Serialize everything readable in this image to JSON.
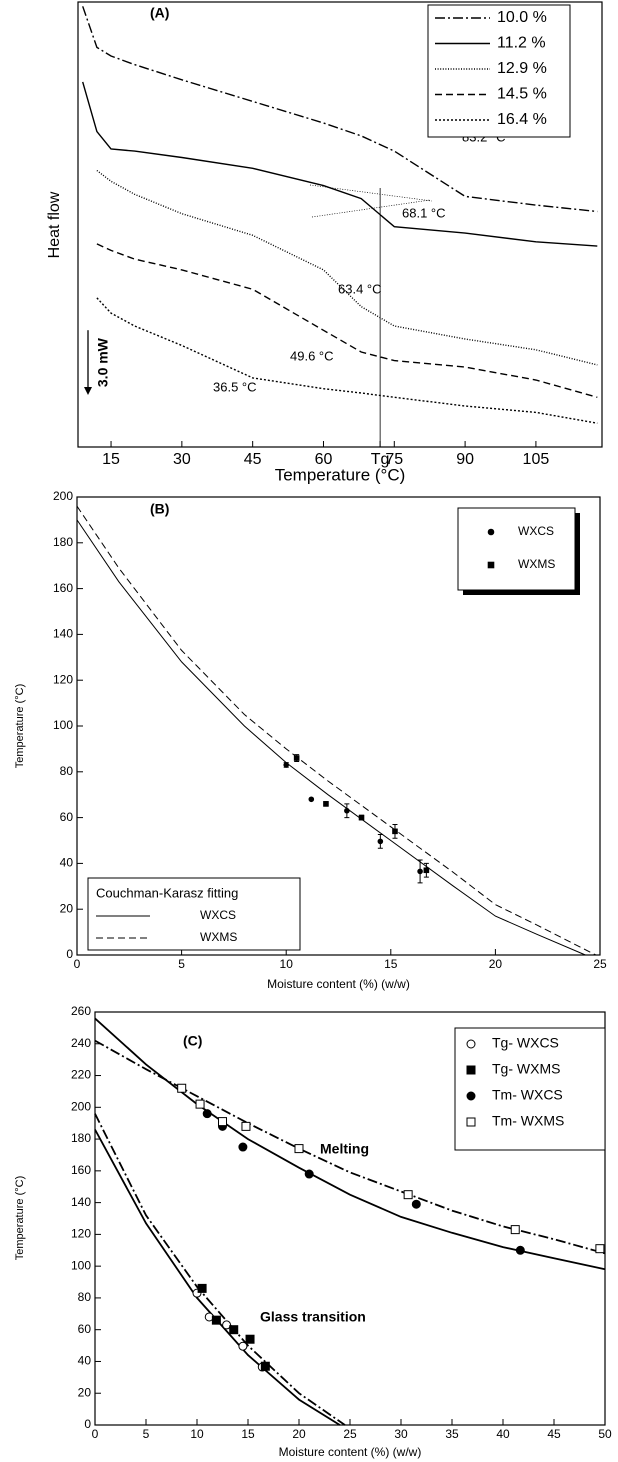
{
  "chart_data": [
    {
      "type": "line",
      "title": "(A)",
      "xlabel": "Temperature (°C)",
      "ylabel": "Heat flow",
      "scale_bar": {
        "value": 3,
        "label": "3.0 mW"
      },
      "x": [
        9,
        12,
        15,
        20,
        30,
        45,
        60,
        68,
        75,
        90,
        105,
        118
      ],
      "series": [
        {
          "name": "10.0 %",
          "color": "#000000",
          "dash": "dashdot",
          "values": [
            20.4,
            18.5,
            18.1,
            17.7,
            17.0,
            16.0,
            15.0,
            14.4,
            13.7,
            11.6,
            11.2,
            10.9
          ]
        },
        {
          "name": "11.2 %",
          "color": "#000000",
          "dash": "solid",
          "values": [
            16.9,
            14.6,
            13.8,
            13.7,
            13.4,
            12.9,
            12.1,
            11.5,
            10.2,
            9.9,
            9.5,
            9.3
          ]
        },
        {
          "name": "12.9 %",
          "color": "#000000",
          "dash": "fine-dot",
          "values": [
            null,
            12.8,
            12.3,
            11.7,
            10.8,
            9.8,
            8.2,
            6.5,
            5.6,
            5.0,
            4.5,
            3.8
          ]
        },
        {
          "name": "14.5 %",
          "color": "#000000",
          "dash": "dashed",
          "values": [
            null,
            9.4,
            9.1,
            8.7,
            8.2,
            7.3,
            5.4,
            4.4,
            4.0,
            3.7,
            3.1,
            2.3
          ]
        },
        {
          "name": "16.4 %",
          "color": "#000000",
          "dash": "dotted",
          "values": [
            null,
            6.9,
            6.2,
            5.6,
            4.7,
            3.2,
            2.7,
            2.5,
            2.3,
            1.9,
            1.6,
            1.1
          ]
        }
      ],
      "xlim": [
        8,
        119
      ],
      "ylim": [
        0,
        20.6
      ],
      "xticks": [
        15,
        30,
        45,
        60,
        {
          "value": 72,
          "label": "Tg"
        },
        75,
        90,
        105
      ],
      "annotations": [
        "83.2 °C",
        "68.1 °C",
        "63.4 °C",
        "49.6 °C",
        "36.5 °C"
      ],
      "legend": "upper right"
    },
    {
      "type": "scatter",
      "title": "(B)",
      "xlabel": "Moisture content (%) (w/w)",
      "ylabel": "Temperature (°C)",
      "legend_title": "Couchman-Karasz fitting",
      "series": [
        {
          "name": "WXCS",
          "kind": "scatter",
          "marker": "circle",
          "filled": true,
          "color": "#000000",
          "x": [
            10,
            11.2,
            12.9,
            14.5,
            16.4
          ],
          "values": [
            83,
            68,
            63,
            49.6,
            36.5
          ],
          "errors": [
            1,
            0,
            3,
            3,
            5
          ]
        },
        {
          "name": "WXMS",
          "kind": "scatter",
          "marker": "square",
          "filled": true,
          "color": "#000000",
          "x": [
            10.5,
            11.9,
            13.6,
            15.2,
            16.7
          ],
          "values": [
            86,
            66,
            60,
            54,
            37
          ],
          "errors": [
            1.5,
            1,
            1,
            3,
            3
          ]
        },
        {
          "name": "WXCS",
          "kind": "line",
          "dash": "solid",
          "color": "#000000",
          "x": [
            0,
            2,
            5,
            8,
            10,
            12,
            15,
            18,
            20,
            22,
            24.3
          ],
          "values": [
            190,
            163,
            128,
            100,
            84,
            70,
            50,
            30,
            17,
            9,
            0
          ]
        },
        {
          "name": "WXMS",
          "kind": "line",
          "dash": "dashed",
          "color": "#000000",
          "x": [
            0,
            2,
            5,
            8,
            10,
            12,
            15,
            18,
            20,
            22,
            24.8
          ],
          "values": [
            196,
            169,
            133,
            105,
            90,
            76,
            56,
            36,
            22,
            13,
            0
          ]
        }
      ],
      "xlim": [
        0,
        25
      ],
      "ylim": [
        0,
        200
      ],
      "xticks": [
        0,
        5,
        10,
        15,
        20,
        25
      ],
      "yticks": [
        0,
        20,
        40,
        60,
        80,
        100,
        120,
        140,
        160,
        180,
        200
      ],
      "legend": "upper right"
    },
    {
      "type": "scatter",
      "title": "(C)",
      "xlabel": "Moisture content (%) (w/w)",
      "ylabel": "Temperature (°C)",
      "series": [
        {
          "name": "Tg- WXCS",
          "kind": "scatter",
          "marker": "circle",
          "filled": false,
          "color": "#000000",
          "x": [
            10,
            11.2,
            12.9,
            14.5,
            16.4
          ],
          "values": [
            83,
            68,
            63,
            49.6,
            36.5
          ]
        },
        {
          "name": "Tg- WXMS",
          "kind": "scatter",
          "marker": "square",
          "filled": true,
          "color": "#000000",
          "x": [
            10.5,
            11.9,
            13.6,
            15.2,
            16.7
          ],
          "values": [
            86,
            66,
            60,
            54,
            37
          ]
        },
        {
          "name": "Tm- WXCS",
          "kind": "scatter",
          "marker": "circle",
          "filled": true,
          "color": "#000000",
          "x": [
            11,
            12.5,
            14.5,
            21,
            31.5,
            41.7
          ],
          "values": [
            196,
            188,
            175,
            158,
            139,
            110
          ]
        },
        {
          "name": "Tm- WXMS",
          "kind": "scatter",
          "marker": "square",
          "filled": false,
          "color": "#000000",
          "x": [
            8.5,
            10.3,
            12.5,
            14.8,
            20,
            30.7,
            41.2,
            49.5
          ],
          "values": [
            212,
            202,
            191,
            188,
            174,
            145,
            123,
            111
          ]
        }
      ],
      "fits": [
        {
          "kind": "line",
          "dash": "solid",
          "color": "#000000",
          "x": [
            0,
            5,
            10,
            15,
            20,
            24
          ],
          "values": [
            186,
            127,
            80,
            44,
            16,
            0
          ]
        },
        {
          "kind": "line",
          "dash": "dashdot",
          "color": "#000000",
          "x": [
            0,
            5,
            10,
            15,
            20,
            24.5
          ],
          "values": [
            196,
            132,
            87,
            50,
            20,
            0
          ]
        },
        {
          "kind": "line",
          "dash": "solid",
          "color": "#000000",
          "x": [
            0,
            5,
            10,
            15,
            20,
            25,
            30,
            35,
            40,
            45,
            50
          ],
          "values": [
            256,
            227,
            202,
            180,
            162,
            145,
            131,
            121,
            112,
            105,
            98
          ]
        },
        {
          "kind": "line",
          "dash": "dashdot",
          "color": "#000000",
          "x": [
            0,
            5,
            10,
            15,
            20,
            25,
            30,
            35,
            40,
            45,
            50
          ],
          "values": [
            242,
            224,
            207,
            190,
            174,
            159,
            147,
            135,
            125,
            117,
            108
          ]
        }
      ],
      "annotations": [
        "Melting",
        "Glass transition"
      ],
      "xlim": [
        0,
        50
      ],
      "ylim": [
        0,
        260
      ],
      "xticks": [
        0,
        5,
        10,
        15,
        20,
        25,
        30,
        35,
        40,
        45,
        50
      ],
      "yticks": [
        0,
        20,
        40,
        60,
        80,
        100,
        120,
        140,
        160,
        180,
        200,
        220,
        240,
        260
      ],
      "legend": "upper right"
    }
  ]
}
